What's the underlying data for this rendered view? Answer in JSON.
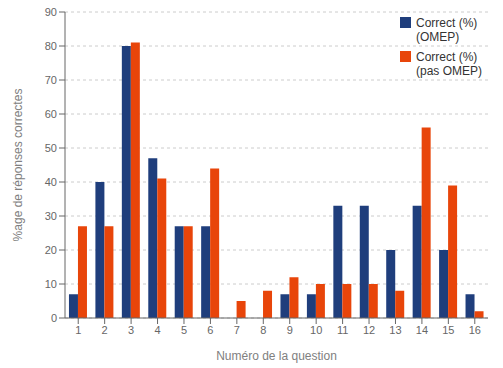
{
  "chart_data": {
    "type": "bar",
    "categories": [
      1,
      2,
      3,
      4,
      5,
      6,
      7,
      8,
      9,
      10,
      11,
      12,
      13,
      14,
      15,
      16
    ],
    "series": [
      {
        "name": "Correct (%)\n(OMEP)",
        "color": "#1F3E7C",
        "values": [
          7,
          40,
          80,
          47,
          27,
          27,
          0,
          0,
          7,
          7,
          33,
          33,
          20,
          33,
          20,
          7
        ]
      },
      {
        "name": "Correct (%)\n(pas OMEP)",
        "color": "#E8450A",
        "values": [
          27,
          27,
          81,
          41,
          27,
          44,
          5,
          8,
          12,
          10,
          10,
          10,
          8,
          56,
          39,
          2
        ]
      }
    ],
    "xlabel": "Numéro de la question",
    "ylabel": "%age de réponses correctes",
    "ylim": [
      0,
      90
    ],
    "yticks": [
      0,
      10,
      20,
      30,
      40,
      50,
      60,
      70,
      80,
      90
    ],
    "grid": true,
    "legend": "upper right"
  }
}
